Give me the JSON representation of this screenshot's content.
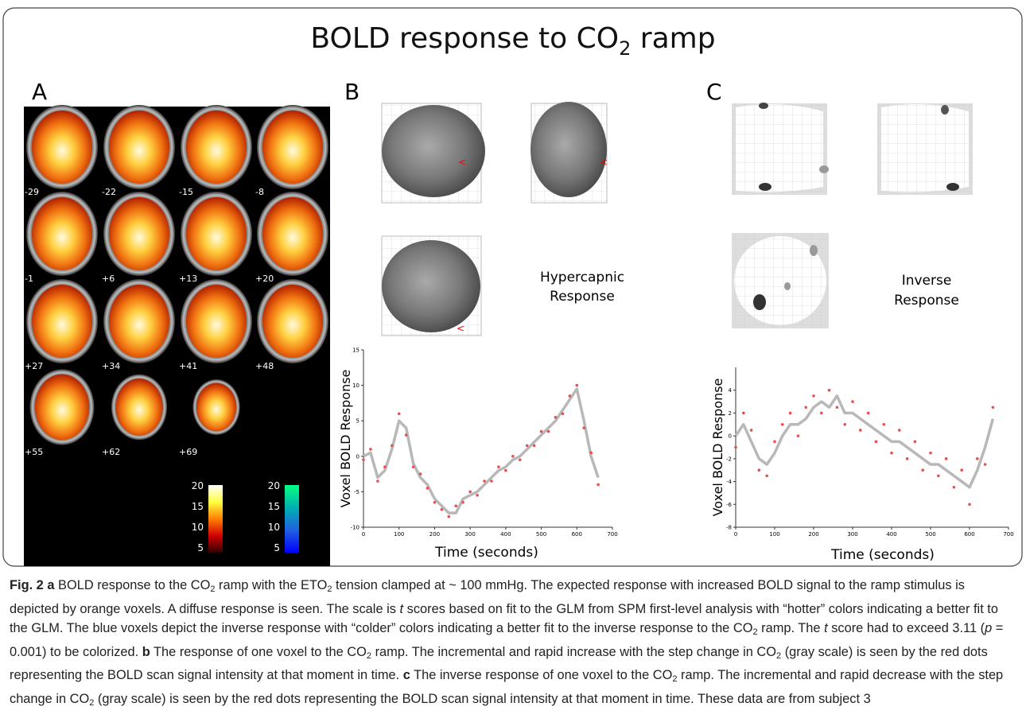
{
  "title": [
    {
      "text": "BOLD response to CO"
    },
    {
      "text": "2",
      "style": "sub"
    },
    {
      "text": " ramp"
    }
  ],
  "panels": {
    "a": {
      "label": "A",
      "slices": [
        "-29",
        "-22",
        "-15",
        "-8",
        "-1",
        "+6",
        "+13",
        "+20",
        "+27",
        "+34",
        "+41",
        "+48",
        "+55",
        "+62",
        "+69"
      ],
      "colorbars": [
        {
          "ticks": [
            "20",
            "15",
            "10",
            "5"
          ],
          "colors": [
            "#ffffff",
            "#ffff40",
            "#ff8000",
            "#d00000",
            "#300000"
          ]
        },
        {
          "ticks": [
            "20",
            "15",
            "10",
            "5"
          ],
          "colors": [
            "#00ff80",
            "#00b0b0",
            "#2060e0",
            "#0000ff"
          ]
        }
      ]
    },
    "b": {
      "label": "B",
      "annotation": [
        "Hypercapnic",
        "Response"
      ]
    },
    "c": {
      "label": "C",
      "annotation": [
        "Inverse",
        "Response"
      ]
    }
  },
  "chart_data": [
    {
      "type": "line",
      "xlabel": "Time (seconds)",
      "ylabel": "Voxel BOLD Response",
      "xlim": [
        0,
        700
      ],
      "ylim": [
        -10,
        15
      ],
      "xticks": [
        0,
        100,
        200,
        300,
        400,
        500,
        600,
        700
      ],
      "yticks": [
        -10,
        -5,
        0,
        5,
        10,
        15
      ],
      "x": [
        0,
        20,
        40,
        60,
        80,
        100,
        120,
        140,
        160,
        180,
        200,
        220,
        240,
        260,
        280,
        300,
        320,
        340,
        360,
        380,
        400,
        420,
        440,
        460,
        480,
        500,
        520,
        540,
        560,
        580,
        600,
        620,
        640,
        660
      ],
      "series": [
        {
          "color": "#b8b8b8",
          "marker": "line",
          "values": [
            0,
            0.5,
            -3,
            -2,
            1,
            5,
            4,
            -1,
            -3,
            -4,
            -6,
            -7,
            -8,
            -8,
            -6,
            -5.5,
            -5,
            -4,
            -3,
            -2,
            -1.5,
            -0.5,
            0,
            1,
            2,
            3,
            4,
            5,
            6.5,
            8,
            9.5,
            5,
            0,
            -3
          ]
        },
        {
          "color": "#e85050",
          "marker": "dot",
          "values": [
            -0.5,
            1,
            -3.5,
            -1.5,
            1.5,
            6,
            3,
            -1.5,
            -2.5,
            -4.5,
            -6.5,
            -7.5,
            -8.5,
            -7,
            -6.5,
            -5,
            -5.5,
            -3.5,
            -3.5,
            -1.5,
            -2,
            0,
            -0.5,
            1.5,
            1.5,
            3.5,
            3.5,
            5.5,
            6,
            8.5,
            10,
            4,
            0.5,
            -4
          ]
        }
      ]
    },
    {
      "type": "line",
      "xlabel": "Time (seconds)",
      "ylabel": "Voxel BOLD Response",
      "xlim": [
        0,
        700
      ],
      "ylim": [
        -8,
        6
      ],
      "xticks": [
        0,
        100,
        200,
        300,
        400,
        500,
        600,
        700
      ],
      "yticks": [
        -8,
        -6,
        -4,
        -2,
        0,
        2,
        4
      ],
      "x": [
        0,
        20,
        40,
        60,
        80,
        100,
        120,
        140,
        160,
        180,
        200,
        220,
        240,
        260,
        280,
        300,
        320,
        340,
        360,
        380,
        400,
        420,
        440,
        460,
        480,
        500,
        520,
        540,
        560,
        580,
        600,
        620,
        640,
        660
      ],
      "series": [
        {
          "color": "#b8b8b8",
          "marker": "line",
          "values": [
            0,
            1,
            -0.5,
            -2,
            -2.5,
            -1.5,
            0,
            1,
            1,
            1.5,
            2.5,
            3,
            2.5,
            3.5,
            2,
            2,
            1.5,
            1,
            0.5,
            0,
            -0.5,
            -0.5,
            -1,
            -1.5,
            -2,
            -2.5,
            -2.5,
            -3,
            -3.5,
            -4,
            -4.5,
            -3,
            -1,
            1.5
          ]
        },
        {
          "color": "#e85050",
          "marker": "dot",
          "values": [
            -1,
            2,
            0.5,
            -3,
            -3.5,
            -0.5,
            1,
            2,
            0,
            2.5,
            3.5,
            2,
            4,
            2.5,
            1,
            3,
            0.5,
            2,
            -0.5,
            1,
            -1.5,
            0.5,
            -2,
            -0.5,
            -3,
            -1.5,
            -3.5,
            -2,
            -4.5,
            -3,
            -6,
            -2,
            -2.5,
            2.5
          ]
        }
      ]
    }
  ],
  "caption": [
    {
      "text": "Fig. 2 a",
      "style": "bold"
    },
    {
      "text": " BOLD response to the CO"
    },
    {
      "text": "2",
      "style": "sub"
    },
    {
      "text": " ramp with the ETO"
    },
    {
      "text": "2",
      "style": "sub"
    },
    {
      "text": " tension clamped at ~ 100 mmHg. The expected response with increased BOLD signal to the ramp stimulus is depicted by orange voxels. A diffuse response is seen. The scale is "
    },
    {
      "text": "t",
      "style": "italic"
    },
    {
      "text": " scores based on fit to the GLM from SPM first-level analysis with “hotter” colors indicating a better fit to the GLM. The blue voxels depict the inverse response with “colder” colors indicating a better fit to the inverse response to the CO"
    },
    {
      "text": "2",
      "style": "sub"
    },
    {
      "text": " ramp. The "
    },
    {
      "text": "t",
      "style": "italic"
    },
    {
      "text": " score had to exceed 3.11 ("
    },
    {
      "text": "p",
      "style": "italic"
    },
    {
      "text": " = 0.001) to be colorized. "
    },
    {
      "text": "b",
      "style": "bold"
    },
    {
      "text": " The response of one voxel to the CO"
    },
    {
      "text": "2",
      "style": "sub"
    },
    {
      "text": " ramp. The incremental and rapid increase with the step change in CO"
    },
    {
      "text": "2",
      "style": "sub"
    },
    {
      "text": " (gray scale) is seen by the red dots representing the BOLD scan signal intensity at that moment in time. "
    },
    {
      "text": "c",
      "style": "bold"
    },
    {
      "text": " The inverse response of one voxel to the CO"
    },
    {
      "text": "2",
      "style": "sub"
    },
    {
      "text": " ramp. The incremental and rapid decrease with the step change in CO"
    },
    {
      "text": "2",
      "style": "sub"
    },
    {
      "text": " (gray scale) is seen by the red dots representing the BOLD scan signal intensity at that moment in time. These data are from subject 3"
    }
  ]
}
